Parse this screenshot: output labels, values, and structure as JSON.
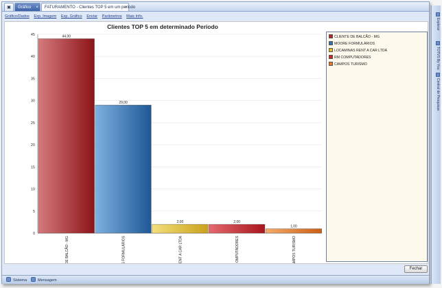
{
  "tabs": {
    "grafico": "Gráfico",
    "faturamento": "FATURAMENTO - Clientes TOP 5 em um periodo"
  },
  "menu": [
    "Gráfico/Dados",
    "Exp. Imagem",
    "Exp. Gráfico",
    "Enviar",
    "Parâmetros",
    "Mais Info."
  ],
  "chart_data": {
    "type": "bar",
    "title": "Clientes TOP 5 em determinado Periodo",
    "categories": [
      "DE BALCÃO - MG",
      "S FORMULÁRIOS",
      "ENT A CAR LTDA",
      "OMPUTADORES",
      "AMPOS TURISMO"
    ],
    "values": [
      44.0,
      29.0,
      2.0,
      2.0,
      1.0
    ],
    "value_labels": [
      "44,00",
      "29,00",
      "2,00",
      "2,00",
      "1,00"
    ],
    "ylim": [
      0,
      45
    ],
    "yticks": [
      "0",
      "5",
      "10",
      "15",
      "20",
      "25",
      "30",
      "35",
      "40",
      "45"
    ],
    "colors": [
      "#b1262c",
      "#2f72b4",
      "#e2be2b",
      "#c8252d",
      "#e87a2a"
    ],
    "legend_position": "right",
    "legend": [
      "CLIENTE DE BALCÃO - MG",
      "MOORE FORMULÁRIOS",
      "LOCAMINAS RENT A CAR LTDA",
      "RM COMPUTADORES",
      "CAMPOS TURISMO"
    ],
    "grid": true
  },
  "buttons": {
    "close": "Fechar"
  },
  "status": {
    "sistema": "Sistema",
    "mensagem": "Mensagem"
  },
  "sidebar": [
    "Explorar",
    "TOTVS By You",
    "Central de Pesquisas"
  ]
}
